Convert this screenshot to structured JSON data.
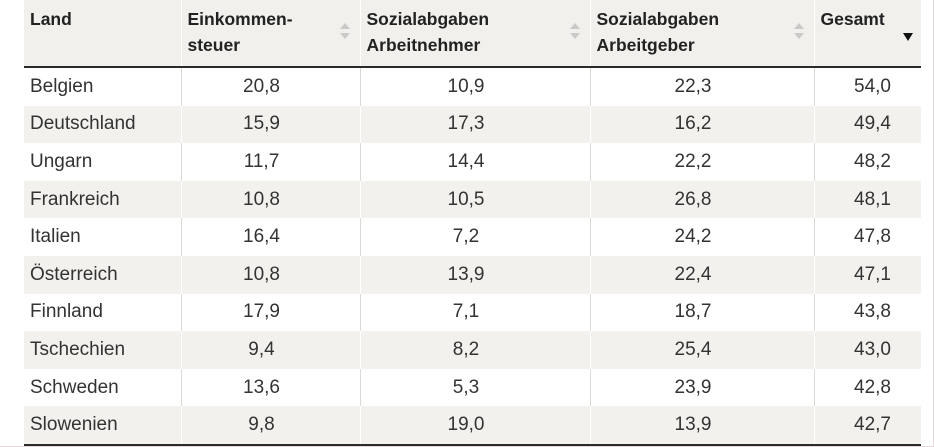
{
  "table": {
    "headers": {
      "land": "Land",
      "einkommensteuer": "Einkommen-\nsteuer",
      "an": "Sozialabgaben\nArbeitnehmer",
      "ag": "Sozialabgaben\nArbeitgeber",
      "gesamt": "Gesamt"
    },
    "sort": {
      "column": "gesamt",
      "direction": "descending"
    },
    "rows": [
      {
        "land": "Belgien",
        "eink": "20,8",
        "an": "10,9",
        "ag": "22,3",
        "ges": "54,0"
      },
      {
        "land": "Deutschland",
        "eink": "15,9",
        "an": "17,3",
        "ag": "16,2",
        "ges": "49,4"
      },
      {
        "land": "Ungarn",
        "eink": "11,7",
        "an": "14,4",
        "ag": "22,2",
        "ges": "48,2"
      },
      {
        "land": "Frankreich",
        "eink": "10,8",
        "an": "10,5",
        "ag": "26,8",
        "ges": "48,1"
      },
      {
        "land": "Italien",
        "eink": "16,4",
        "an": "7,2",
        "ag": "24,2",
        "ges": "47,8"
      },
      {
        "land": "Österreich",
        "eink": "10,8",
        "an": "13,9",
        "ag": "22,4",
        "ges": "47,1"
      },
      {
        "land": "Finnland",
        "eink": "17,9",
        "an": "7,1",
        "ag": "18,7",
        "ges": "43,8"
      },
      {
        "land": "Tschechien",
        "eink": "9,4",
        "an": "8,2",
        "ag": "25,4",
        "ges": "43,0"
      },
      {
        "land": "Schweden",
        "eink": "13,6",
        "an": "5,3",
        "ag": "23,9",
        "ges": "42,8"
      },
      {
        "land": "Slowenien",
        "eink": "9,8",
        "an": "19,0",
        "ag": "13,9",
        "ges": "42,7"
      }
    ]
  }
}
